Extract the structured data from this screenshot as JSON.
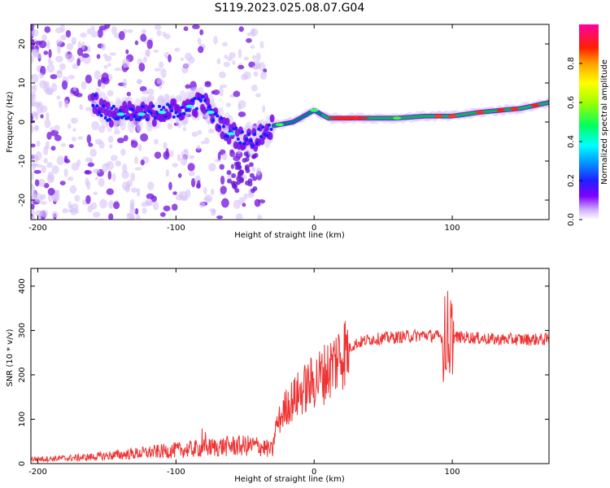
{
  "figure": {
    "title": "S119.2023.025.08.07.G04"
  },
  "chart_data": [
    {
      "type": "heatmap",
      "xlabel": "Height of straight line (km)",
      "ylabel": "Frequency (Hz)",
      "xlim": [
        -205,
        170
      ],
      "ylim": [
        -25,
        25
      ],
      "xticks": [
        -200,
        -100,
        0,
        100
      ],
      "yticks": [
        -20,
        -10,
        0,
        10,
        20
      ],
      "grid": false,
      "colorbar": {
        "label": "Normalized spectral amplitude",
        "range": [
          0,
          1
        ],
        "ticks": [
          0.0,
          0.2,
          0.4,
          0.6,
          0.8
        ],
        "colormap": "rainbow (violet to red)"
      },
      "ridge": [
        {
          "x": -200,
          "y": 4
        },
        {
          "x": -160,
          "y": 6
        },
        {
          "x": -150,
          "y": 2
        },
        {
          "x": -120,
          "y": 2
        },
        {
          "x": -100,
          "y": 3
        },
        {
          "x": -80,
          "y": 5
        },
        {
          "x": -70,
          "y": 0
        },
        {
          "x": -60,
          "y": -3
        },
        {
          "x": -45,
          "y": -5
        },
        {
          "x": -30,
          "y": -1
        },
        {
          "x": -15,
          "y": 0
        },
        {
          "x": 0,
          "y": 3
        },
        {
          "x": 10,
          "y": 1
        },
        {
          "x": 40,
          "y": 1
        },
        {
          "x": 60,
          "y": 1
        },
        {
          "x": 80,
          "y": 1.5
        },
        {
          "x": 100,
          "y": 1.5
        },
        {
          "x": 120,
          "y": 2.5
        },
        {
          "x": 150,
          "y": 3.5
        },
        {
          "x": 170,
          "y": 5
        }
      ]
    },
    {
      "type": "line",
      "xlabel": "Height of straight line (km)",
      "ylabel": "SNR (10 * v/v)",
      "xlim": [
        -205,
        170
      ],
      "ylim": [
        0,
        440
      ],
      "xticks": [
        -200,
        -100,
        0,
        100
      ],
      "yticks": [
        0,
        100,
        200,
        300,
        400
      ],
      "grid": false,
      "series": [
        {
          "color": "#ee3333",
          "x": [
            -205,
            -180,
            -160,
            -140,
            -120,
            -100,
            -80,
            -60,
            -40,
            -30,
            -28,
            -20,
            -10,
            0,
            10,
            20,
            30,
            40,
            60,
            80,
            95,
            98,
            100,
            110,
            130,
            150,
            170
          ],
          "y": [
            10,
            12,
            15,
            20,
            25,
            30,
            35,
            40,
            40,
            30,
            80,
            130,
            160,
            185,
            210,
            250,
            270,
            280,
            285,
            290,
            285,
            290,
            285,
            285,
            280,
            280,
            280
          ]
        }
      ]
    }
  ]
}
